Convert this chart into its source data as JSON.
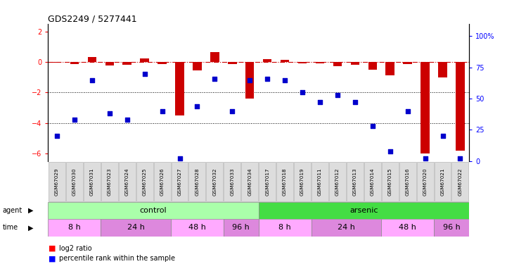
{
  "title": "GDS2249 / 5277441",
  "samples": [
    "GSM67029",
    "GSM67030",
    "GSM67031",
    "GSM67023",
    "GSM67024",
    "GSM67025",
    "GSM67026",
    "GSM67027",
    "GSM67028",
    "GSM67032",
    "GSM67033",
    "GSM67034",
    "GSM67017",
    "GSM67018",
    "GSM67019",
    "GSM67011",
    "GSM67012",
    "GSM67013",
    "GSM67014",
    "GSM67015",
    "GSM67016",
    "GSM67020",
    "GSM67021",
    "GSM67022"
  ],
  "log2_ratio": [
    -0.05,
    -0.15,
    0.3,
    -0.25,
    -0.2,
    0.22,
    -0.12,
    -3.5,
    -0.55,
    0.65,
    -0.12,
    -2.4,
    0.18,
    0.15,
    -0.08,
    -0.1,
    -0.28,
    -0.18,
    -0.5,
    -0.9,
    -0.12,
    -6.0,
    -1.0,
    -5.8
  ],
  "percentile": [
    20,
    33,
    65,
    38,
    33,
    70,
    40,
    2,
    44,
    66,
    40,
    65,
    66,
    65,
    55,
    47,
    53,
    47,
    28,
    8,
    40,
    2,
    20,
    2
  ],
  "control_color": "#aaffaa",
  "arsenic_color": "#44dd44",
  "time_colors": [
    "#ffaaff",
    "#dd88dd",
    "#ffaaff",
    "#dd88dd",
    "#ffaaff",
    "#dd88dd",
    "#ffaaff",
    "#dd88dd"
  ],
  "time_groups": [
    {
      "label": "8 h",
      "start": 0,
      "end": 2,
      "color": "#ffaaff"
    },
    {
      "label": "24 h",
      "start": 3,
      "end": 6,
      "color": "#dd88dd"
    },
    {
      "label": "48 h",
      "start": 7,
      "end": 9,
      "color": "#ffaaff"
    },
    {
      "label": "96 h",
      "start": 10,
      "end": 11,
      "color": "#dd88dd"
    },
    {
      "label": "8 h",
      "start": 12,
      "end": 14,
      "color": "#ffaaff"
    },
    {
      "label": "24 h",
      "start": 15,
      "end": 18,
      "color": "#dd88dd"
    },
    {
      "label": "48 h",
      "start": 19,
      "end": 21,
      "color": "#ffaaff"
    },
    {
      "label": "96 h",
      "start": 22,
      "end": 23,
      "color": "#dd88dd"
    }
  ],
  "ylim_left": [
    -6.5,
    2.5
  ],
  "ylim_right": [
    0,
    110
  ],
  "yticks_left": [
    -6,
    -4,
    -2,
    0,
    2
  ],
  "yticks_right": [
    0,
    25,
    50,
    75,
    100
  ],
  "bar_color": "#cc0000",
  "dot_color": "#0000cc",
  "sample_label_bg": "#dddddd",
  "sample_label_edge": "#aaaaaa"
}
